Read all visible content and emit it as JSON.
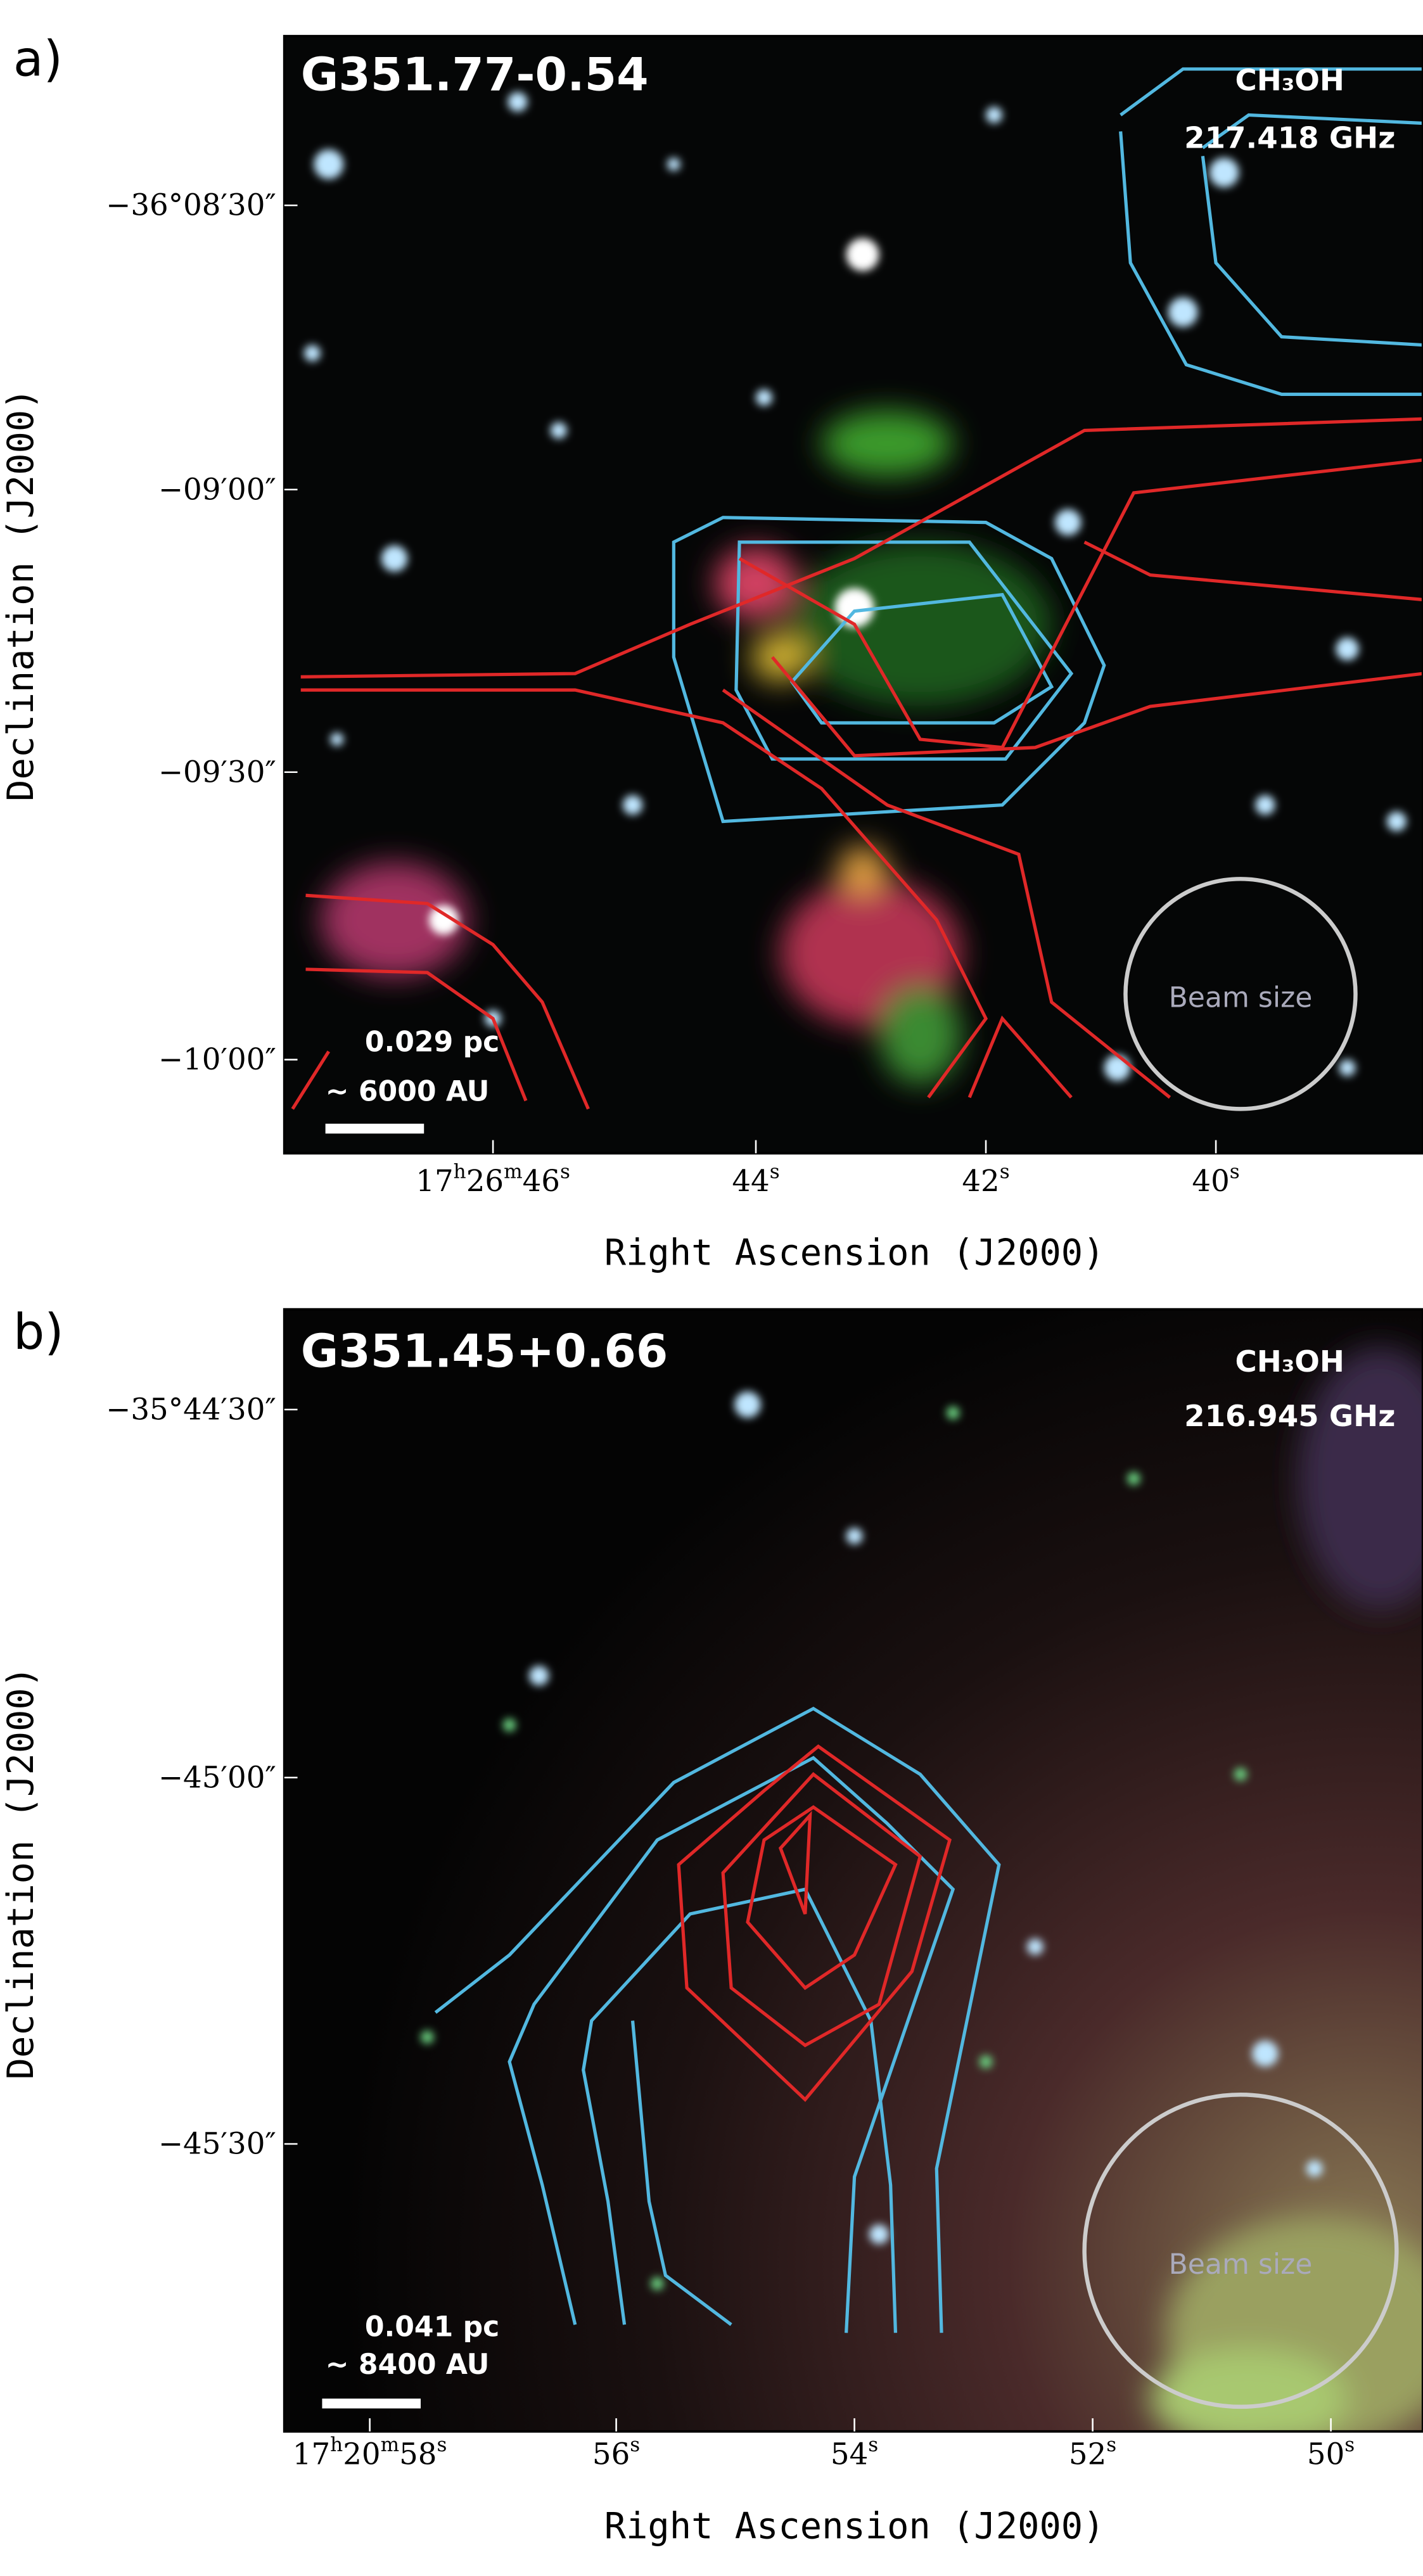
{
  "panels": [
    {
      "label": "a)",
      "source": "G351.77-0.54",
      "line": "CH₃OH",
      "frequency": "217.418 GHz",
      "scale_pc": "0.029 pc",
      "scale_au": "~ 6000 AU",
      "beam": "Beam size",
      "ra_ticks": [
        [
          "17",
          "h",
          "26",
          "m",
          "46",
          "s"
        ],
        [
          "44",
          "s"
        ],
        [
          "42",
          "s"
        ],
        [
          "40",
          "s"
        ]
      ],
      "dec_ticks": [
        "−36°08′30″",
        "−09′00″",
        "−09′30″",
        "−10′00″"
      ],
      "xlabel": "Right Ascension (J2000)",
      "ylabel": "Declination (J2000)"
    },
    {
      "label": "b)",
      "source": "G351.45+0.66",
      "line": "CH₃OH",
      "frequency": "216.945 GHz",
      "scale_pc": "0.041 pc",
      "scale_au": "~ 8400 AU",
      "beam": "Beam size",
      "ra_ticks": [
        [
          "17",
          "h",
          "20",
          "m",
          "58",
          "s"
        ],
        [
          "56",
          "s"
        ],
        [
          "54",
          "s"
        ],
        [
          "52",
          "s"
        ],
        [
          "50",
          "s"
        ]
      ],
      "dec_ticks": [
        "−35°44′30″",
        "−45′00″",
        "−45′30″"
      ],
      "xlabel": "Right Ascension (J2000)",
      "ylabel": "Declination (J2000)"
    }
  ]
}
